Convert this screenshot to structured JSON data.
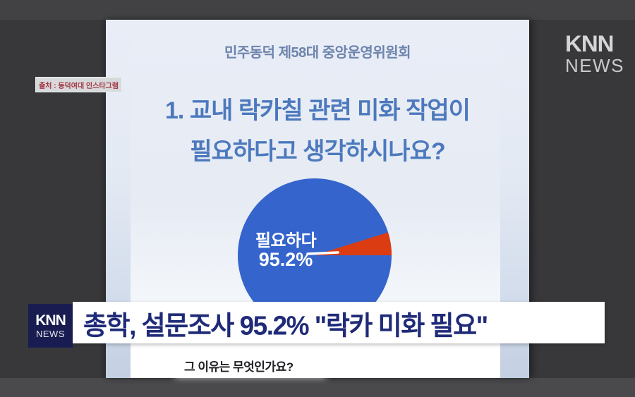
{
  "broadcaster": {
    "top_logo": {
      "brand": "KNN",
      "sub": "NEWS"
    },
    "banner_logo": {
      "brand": "KNN",
      "sub": "NEWS"
    }
  },
  "source_tag": {
    "text": "출처 : 동덕여대 인스타그램"
  },
  "card": {
    "header": "민주동덕 제58대 중앙운영위원회",
    "question_line1": "1. 교내 락카칠 관련 미화 작업이",
    "question_line2": "필요하다고 생각하시나요?",
    "followup_question": "그 이유는 무엇인가요?"
  },
  "banner": {
    "headline": "총학, 설문조사 95.2% \"락카 미화 필요\""
  },
  "chart_data": {
    "type": "pie",
    "title": "1. 교내 락카칠 관련 미화 작업이 필요하다고 생각하시나요?",
    "slices": [
      {
        "label": "필요하다",
        "value": 95.2,
        "color": "#3565cc"
      },
      {
        "label": "",
        "value": 4.8,
        "color": "#dc3c12"
      }
    ],
    "inner_label": {
      "name": "필요하다",
      "pct": "95.2%"
    },
    "legend": "none"
  },
  "colors": {
    "background": "#38383b",
    "banner_text": "#1f2a78",
    "question_text": "#4c79bd",
    "pie_major": "#3565cc",
    "pie_minor": "#dc3c12"
  }
}
